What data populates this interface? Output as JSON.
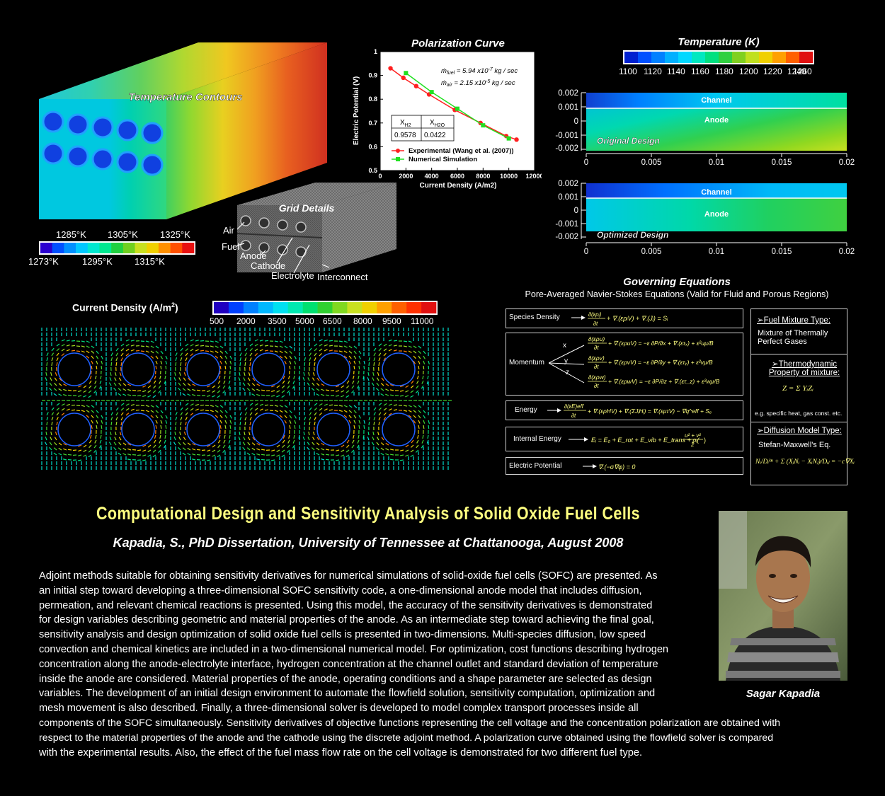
{
  "temperature_contours": {
    "title": "Temperature Contours",
    "legend_top_labels": [
      "1285°K",
      "1305°K",
      "1325°K"
    ],
    "legend_bottom_labels": [
      "1273°K",
      "1295°K",
      "1315°K"
    ],
    "colors": [
      "#2a00d0",
      "#0050ff",
      "#0090ff",
      "#00c8ff",
      "#00e8d0",
      "#00e890",
      "#20d040",
      "#70d020",
      "#c8e020",
      "#f0d000",
      "#ff9000",
      "#ff5000",
      "#e81010"
    ]
  },
  "grid_details": {
    "title": "Grid Details",
    "labels": {
      "air": "Air",
      "fuel": "Fuel",
      "anode": "Anode",
      "cathode": "Cathode",
      "electrolyte": "Electrolyte",
      "interconnect": "Interconnect"
    }
  },
  "polarization": {
    "title": "Polarization Curve",
    "ylabel": "Electric Potential (V)",
    "xlabel": "Current Density (A/m2)",
    "yticks": [
      "1",
      "0.9",
      "0.8",
      "0.7",
      "0.6",
      "0.5"
    ],
    "xticks": [
      "0",
      "2000",
      "4000",
      "6000",
      "8000",
      "10000",
      "12000"
    ],
    "mfuel_label": "ṁfuel = 5.94 x10-7 kg / sec",
    "mair_label": "ṁair = 2.15 x10-5 kg / sec",
    "table_headers": [
      "XH2",
      "XH2O"
    ],
    "table_values": [
      "0.9578",
      "0.0422"
    ],
    "legend": [
      "Experimental (Wang et al. (2007))",
      "Numerical Simulation"
    ]
  },
  "chart_data": [
    {
      "type": "line",
      "title": "Polarization Curve",
      "xlabel": "Current Density (A/m2)",
      "ylabel": "Electric Potential (V)",
      "xlim": [
        0,
        12000
      ],
      "ylim": [
        0.5,
        1.0
      ],
      "series": [
        {
          "name": "Experimental (Wang et al. (2007))",
          "color": "#ff2020",
          "x": [
            800,
            1800,
            2800,
            3800,
            5800,
            7800,
            9800,
            10600
          ],
          "y": [
            0.93,
            0.89,
            0.855,
            0.82,
            0.755,
            0.7,
            0.645,
            0.63
          ]
        },
        {
          "name": "Numerical Simulation",
          "color": "#20e020",
          "x": [
            2000,
            4000,
            6000,
            8000,
            10000
          ],
          "y": [
            0.91,
            0.83,
            0.76,
            0.69,
            0.635
          ]
        }
      ]
    }
  ],
  "temperature_k": {
    "title": "Temperature (K)",
    "scale_labels": [
      "1100",
      "1120",
      "1140",
      "1160",
      "1180",
      "1200",
      "1220",
      "1240",
      "1260"
    ],
    "colors": [
      "#0020d0",
      "#0050ff",
      "#0080ff",
      "#00b0ff",
      "#00d8ff",
      "#00e8c0",
      "#00e080",
      "#30d040",
      "#80d020",
      "#c0e020",
      "#f0d000",
      "#ffa000",
      "#ff6000",
      "#e01010"
    ],
    "yticks": [
      "0.002",
      "0.001",
      "0",
      "-0.001",
      "-0.002"
    ],
    "xticks": [
      "0",
      "0.005",
      "0.01",
      "0.015",
      "0.02"
    ],
    "channel": "Channel",
    "anode": "Anode",
    "original": "Original Design",
    "optimized": "Optimized Design"
  },
  "current_density": {
    "title": "Current Density (A/m2)",
    "title_main": "Current Density (A/m",
    "title_sup": "2",
    "title_end": ")",
    "scale_labels": [
      "500",
      "2000",
      "3500",
      "5000",
      "6500",
      "8000",
      "9500",
      "11000"
    ]
  },
  "equations": {
    "title": "Governing Equations",
    "subtitle": "Pore-Averaged Navier-Stokes Equations (Valid for Fluid and Porous Regions)",
    "species": "Species Density",
    "momentum": "Momentum",
    "energy": "Energy",
    "internal_energy": "Internal Energy",
    "electric_potential": "Electric Potential",
    "axes": [
      "x",
      "y",
      "z"
    ],
    "fuel_head": "➢Fuel Mixture Type:",
    "fuel_text": "Mixture of Thermally Perfect Gases",
    "thermo_head": "➢Thermodynamic Property of mixture:",
    "thermo_note": "e.g. specific heat, gas const. etc.",
    "diff_head": "➢Diffusion Model Type:",
    "diff_text": "Stefan-Maxwell's Eq."
  },
  "main_title": "Computational Design and Sensitivity Analysis of Solid Oxide Fuel Cells",
  "author_line": "Kapadia, S., PhD Dissertation, University of Tennessee at Chattanooga,  August 2008",
  "abstract_lines": [
    "Adjoint methods suitable for obtaining sensitivity derivatives for numerical simulations of solid-oxide fuel cells (SOFC) are presented. As",
    "an initial step toward developing a three-dimensional SOFC sensitivity code, a one-dimensional anode model that includes diffusion,",
    "permeation, and relevant chemical reactions is presented. Using this model, the accuracy of the sensitivity derivatives is demonstrated",
    "for design variables describing geometric and material properties of the anode. As an intermediate step toward achieving the final goal,",
    "sensitivity analysis and design optimization of solid oxide fuel cells is presented in two-dimensions. Multi-species diffusion, low speed",
    "convection and chemical kinetics are included in a two-dimensional numerical model. For optimization, cost functions describing hydrogen",
    "concentration along the anode-electrolyte interface, hydrogen concentration at the channel outlet and standard deviation of temperature",
    "inside the anode are considered. Material properties of the anode, operating conditions and a shape parameter are selected as design",
    "variables. The development of an initial design environment to automate the flowfield solution, sensitivity computation, optimization and",
    "mesh movement is also described.  Finally, a three-dimensional solver is developed to model complex transport processes inside all",
    "components of the SOFC simultaneously. Sensitivity derivatives of objective functions representing the cell voltage and the concentration polarization are obtained with",
    "respect to the material properties of the anode and the cathode using the discrete adjoint method. A polarization curve obtained using the flowfield solver is compared",
    "with the experimental results. Also, the effect of the fuel mass flow rate on the cell voltage is demonstrated for two different fuel type."
  ],
  "photo_caption": "Sagar Kapadia"
}
